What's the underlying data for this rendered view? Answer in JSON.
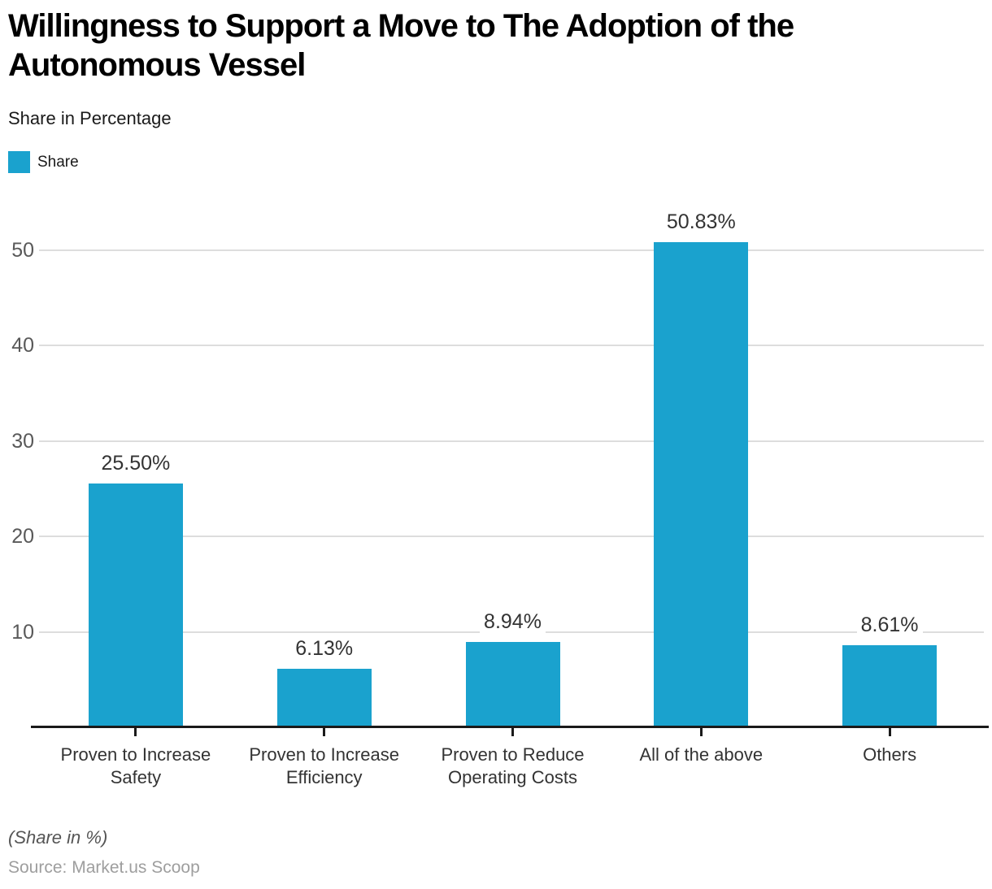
{
  "header": {
    "title": "Willingness to Support a Move to The Adoption of the\nAutonomous Vessel",
    "subtitle": "Share in Percentage"
  },
  "legend": {
    "items": [
      {
        "label": "Share",
        "color": "#1aa2ce"
      }
    ]
  },
  "palette": {
    "accent": "#1aa2ce",
    "grid": "#dddddd",
    "axis": "#1a1a1a",
    "value_label": "#333333",
    "tick_label": "#595959"
  },
  "chart_data": {
    "type": "bar",
    "title": "Willingness to Support a Move to The Adoption of the Autonomous Vessel",
    "subtitle": "Share in Percentage",
    "categories": [
      "Proven to Increase\nSafety",
      "Proven to Increase\nEfficiency",
      "Proven to Reduce\nOperating Costs",
      "All of the above",
      "Others"
    ],
    "series": [
      {
        "name": "Share",
        "values": [
          25.5,
          6.13,
          8.94,
          50.83,
          8.61
        ]
      }
    ],
    "value_labels": [
      "25.50%",
      "6.13%",
      "8.94%",
      "50.83%",
      "8.61%"
    ],
    "yticks": [
      10,
      20,
      30,
      40,
      50
    ],
    "ylim": [
      0,
      55.6
    ],
    "xlabel": "",
    "ylabel": "",
    "grid": "horizontal",
    "legend_position": "top-left",
    "bar_color": "#1aa2ce"
  },
  "footer": {
    "note": "(Share in %)",
    "source": "Source: Market.us Scoop"
  }
}
